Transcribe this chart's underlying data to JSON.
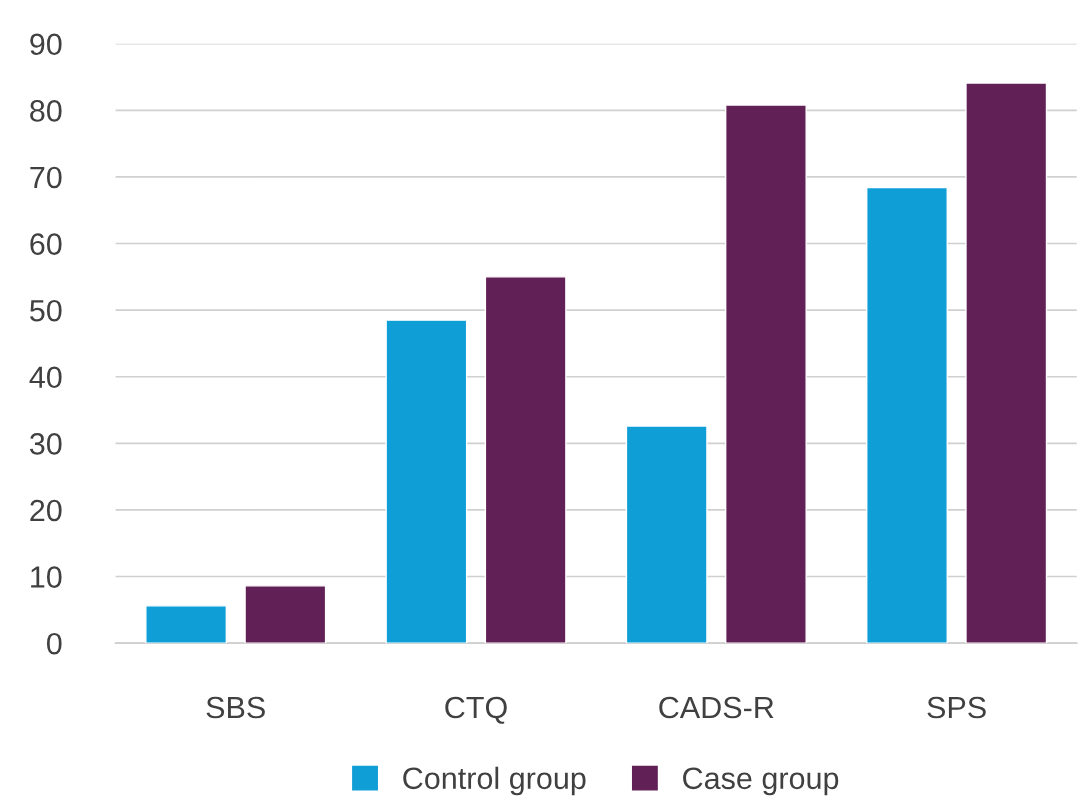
{
  "chart_data": {
    "type": "bar",
    "categories": [
      "SBS",
      "CTQ",
      "CADS-R",
      "SPS"
    ],
    "series": [
      {
        "name": "Control group",
        "color": "#0f9ed5",
        "values": [
          5.6,
          48.5,
          32.6,
          68.4
        ]
      },
      {
        "name": "Case group",
        "color": "#612056",
        "values": [
          8.6,
          55.0,
          80.8,
          84.1
        ]
      }
    ],
    "ylim": [
      0,
      90
    ],
    "yticks": [
      0,
      10,
      20,
      30,
      40,
      50,
      60,
      70,
      80,
      90
    ],
    "grid": "y",
    "legend": "bottom"
  }
}
